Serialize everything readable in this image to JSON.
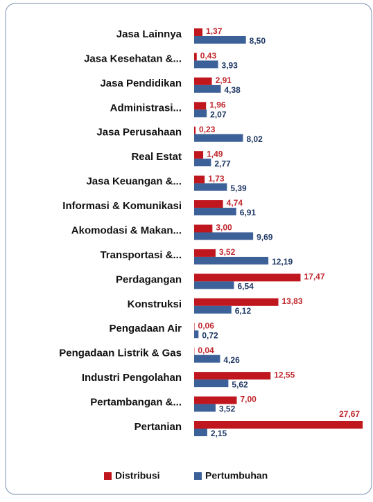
{
  "chart_data": {
    "type": "barh",
    "categories": [
      "Jasa Lainnya",
      "Jasa Kesehatan &...",
      "Jasa Pendidikan",
      "Administrasi...",
      "Jasa Perusahaan",
      "Real Estat",
      "Jasa Keuangan &...",
      "Informasi & Komunikasi",
      "Akomodasi & Makan...",
      "Transportasi &...",
      "Perdagangan",
      "Konstruksi",
      "Pengadaan Air",
      "Pengadaan Listrik & Gas",
      "Industri Pengolahan",
      "Pertambangan &...",
      "Pertanian"
    ],
    "series": [
      {
        "name": "Distribusi",
        "color": "#c0171f",
        "values": [
          1.37,
          0.43,
          2.91,
          1.96,
          0.23,
          1.49,
          1.73,
          4.74,
          3.0,
          3.52,
          17.47,
          13.83,
          0.06,
          0.04,
          12.55,
          7.0,
          27.67
        ],
        "value_labels": [
          "1,37",
          "0,43",
          "2,91",
          "1,96",
          "0,23",
          "1,49",
          "1,73",
          "4,74",
          "3,00",
          "3,52",
          "17,47",
          "13,83",
          "0,06",
          "0,04",
          "12,55",
          "7,00",
          "27,67"
        ]
      },
      {
        "name": "Pertumbuhan",
        "color": "#3c6098",
        "values": [
          8.5,
          3.93,
          4.38,
          2.07,
          8.02,
          2.77,
          5.39,
          6.91,
          9.69,
          12.19,
          6.54,
          6.12,
          0.72,
          4.26,
          5.62,
          3.52,
          2.15
        ],
        "value_labels": [
          "8,50",
          "3,93",
          "4,38",
          "2,07",
          "8,02",
          "2,77",
          "5,39",
          "6,91",
          "9,69",
          "12,19",
          "6,54",
          "6,12",
          "0,72",
          "4,26",
          "5,62",
          "3,52",
          "2,15"
        ]
      }
    ],
    "xlim": [
      0,
      28
    ]
  }
}
